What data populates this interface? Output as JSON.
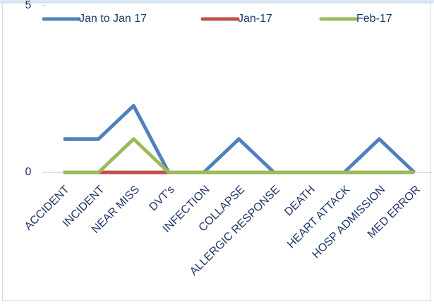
{
  "chart_data": {
    "type": "line",
    "categories": [
      "ACCIDENT",
      "INCIDENT",
      "NEAR MISS",
      "DVT's",
      "INFECTION",
      "COLLAPSE",
      "ALLERGIC RESPONSE",
      "DEATH",
      "HEART ATTACK",
      "HOSP ADMISSION",
      "MED ERROR"
    ],
    "series": [
      {
        "name": "Jan to Jan 17",
        "color": "#4f81bd",
        "values": [
          1,
          1,
          2,
          0,
          0,
          1,
          0,
          0,
          0,
          1,
          0
        ]
      },
      {
        "name": "Jan-17",
        "color": "#c0504d",
        "values": [
          0,
          0,
          0,
          0,
          0,
          0,
          0,
          0,
          0,
          0,
          0
        ]
      },
      {
        "name": "Feb-17",
        "color": "#9bbb59",
        "values": [
          0,
          0,
          1,
          0,
          0,
          0,
          0,
          0,
          0,
          0,
          0
        ]
      }
    ],
    "ylim": [
      0,
      5
    ],
    "yticks": [
      0,
      5
    ],
    "legend": "top"
  }
}
